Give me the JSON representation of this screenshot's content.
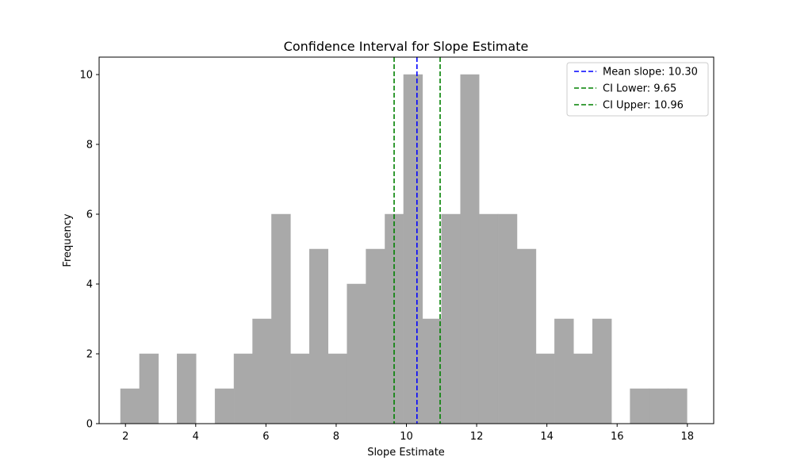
{
  "chart_data": {
    "type": "bar",
    "title": "Confidence Interval for Slope Estimate",
    "xlabel": "Slope Estimate",
    "ylabel": "Frequency",
    "xlim": [
      1.25,
      18.75
    ],
    "ylim": [
      0,
      10.5
    ],
    "xticks": [
      2,
      4,
      6,
      8,
      10,
      12,
      14,
      16,
      18
    ],
    "yticks": [
      0,
      2,
      4,
      6,
      8,
      10
    ],
    "grid": false,
    "bar_color": "#a9a9a9",
    "bins": [
      {
        "x0": 1.86,
        "x1": 2.4,
        "value": 1
      },
      {
        "x0": 2.4,
        "x1": 2.94,
        "value": 2
      },
      {
        "x0": 2.94,
        "x1": 3.47,
        "value": 0
      },
      {
        "x0": 3.47,
        "x1": 4.01,
        "value": 2
      },
      {
        "x0": 4.01,
        "x1": 4.55,
        "value": 0
      },
      {
        "x0": 4.55,
        "x1": 5.09,
        "value": 1
      },
      {
        "x0": 5.09,
        "x1": 5.62,
        "value": 2
      },
      {
        "x0": 5.62,
        "x1": 6.16,
        "value": 3
      },
      {
        "x0": 6.16,
        "x1": 6.7,
        "value": 6
      },
      {
        "x0": 6.7,
        "x1": 7.24,
        "value": 2
      },
      {
        "x0": 7.24,
        "x1": 7.77,
        "value": 5
      },
      {
        "x0": 7.77,
        "x1": 8.31,
        "value": 2
      },
      {
        "x0": 8.31,
        "x1": 8.85,
        "value": 4
      },
      {
        "x0": 8.85,
        "x1": 9.39,
        "value": 5
      },
      {
        "x0": 9.39,
        "x1": 9.92,
        "value": 6
      },
      {
        "x0": 9.92,
        "x1": 10.46,
        "value": 10
      },
      {
        "x0": 10.46,
        "x1": 11.0,
        "value": 3
      },
      {
        "x0": 11.0,
        "x1": 11.54,
        "value": 6
      },
      {
        "x0": 11.54,
        "x1": 12.07,
        "value": 10
      },
      {
        "x0": 12.07,
        "x1": 12.61,
        "value": 6
      },
      {
        "x0": 12.61,
        "x1": 13.15,
        "value": 6
      },
      {
        "x0": 13.15,
        "x1": 13.69,
        "value": 5
      },
      {
        "x0": 13.69,
        "x1": 14.22,
        "value": 2
      },
      {
        "x0": 14.22,
        "x1": 14.76,
        "value": 3
      },
      {
        "x0": 14.76,
        "x1": 15.3,
        "value": 2
      },
      {
        "x0": 15.3,
        "x1": 15.84,
        "value": 3
      },
      {
        "x0": 15.84,
        "x1": 16.37,
        "value": 0
      },
      {
        "x0": 16.37,
        "x1": 16.91,
        "value": 1
      },
      {
        "x0": 16.91,
        "x1": 17.45,
        "value": 1
      },
      {
        "x0": 17.45,
        "x1": 17.99,
        "value": 1
      }
    ],
    "vlines": [
      {
        "name": "Mean slope: 10.30",
        "x": 10.3,
        "color": "#0000ff"
      },
      {
        "name": "CI Lower: 9.65",
        "x": 9.65,
        "color": "#008000"
      },
      {
        "name": "CI Upper: 10.96",
        "x": 10.96,
        "color": "#008000"
      }
    ],
    "legend_position": "top-right"
  }
}
